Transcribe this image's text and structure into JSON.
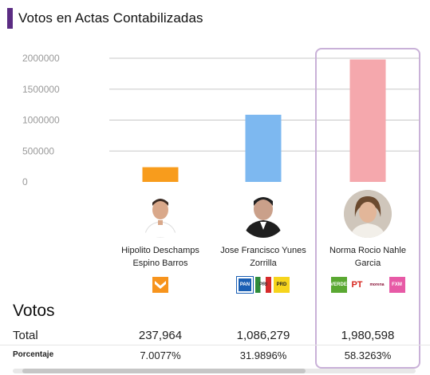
{
  "header": {
    "title": "Votos en Actas Contabilizadas"
  },
  "colors": {
    "accent": "#5b2c83",
    "highlight_border": "#c9b1d8"
  },
  "chart_data": {
    "type": "bar",
    "title": "Votos en Actas Contabilizadas",
    "categories": [
      "Hipolito Deschamps Espino Barros",
      "Jose Francisco Yunes Zorrilla",
      "Norma Rocio Nahle Garcia"
    ],
    "values": [
      237964,
      1086279,
      1980598
    ],
    "colors": [
      "#f89c1c",
      "#7db8f0",
      "#f5a8ad"
    ],
    "ylim": [
      0,
      2000000
    ],
    "yticks": [
      0,
      500000,
      1000000,
      1500000,
      2000000
    ],
    "ytick_labels": [
      "0",
      "500000",
      "1000000",
      "1500000",
      "2000000"
    ],
    "grid": true,
    "highlighted_category": "Norma Rocio Nahle Garcia"
  },
  "candidates": [
    {
      "name_line1": "Hipolito Deschamps",
      "name_line2": "Espino Barros",
      "logos": [
        {
          "icon": "movimiento-ciudadano-logo",
          "color": "#f7941d"
        }
      ]
    },
    {
      "name_line1": "Jose Francisco Yunes",
      "name_line2": "Zorrilla",
      "logos": [
        {
          "icon": "pan-logo",
          "label": "PAN",
          "color": "#1a5fb4"
        },
        {
          "icon": "pri-logo",
          "label": "PRI",
          "color": "#d62b2b"
        },
        {
          "icon": "prd-logo",
          "label": "PRD",
          "color": "#f6d41c"
        }
      ]
    },
    {
      "name_line1": "Norma Rocio Nahle Garcia",
      "name_line2": "",
      "logos": [
        {
          "icon": "pvem-logo",
          "label": "VERDE",
          "color": "#5aa832"
        },
        {
          "icon": "pt-logo",
          "label": "PT",
          "color": "#d7261e"
        },
        {
          "icon": "morena-logo",
          "label": "morena",
          "color": "#8a1538"
        },
        {
          "icon": "fxm-logo",
          "label": "FXM",
          "color": "#e75aa6"
        }
      ]
    }
  ],
  "table": {
    "heading": "Votos",
    "total_label": "Total",
    "pct_label": "Porcentaje",
    "totals": [
      "237,964",
      "1,086,279",
      "1,980,598"
    ],
    "percentages": [
      "7.0077%",
      "31.9896%",
      "58.3263%"
    ]
  }
}
